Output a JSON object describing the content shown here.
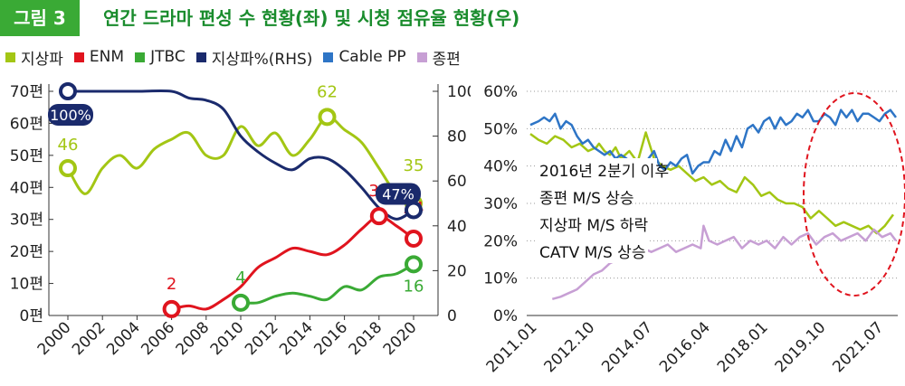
{
  "header": {
    "badge": "그림 3",
    "title": "연간 드라마 편성 수 현황(좌) 및 시청 점유율 현황(우)"
  },
  "legend": [
    {
      "label": "지상파",
      "color": "#a3c614"
    },
    {
      "label": "ENM",
      "color": "#e0141e"
    },
    {
      "label": "JTBC",
      "color": "#3aaa35"
    },
    {
      "label": "지상파%(RHS)",
      "color": "#1a2a6c"
    },
    {
      "label": "Cable PP",
      "color": "#2e75c6"
    },
    {
      "label": "종편",
      "color": "#c79fd4"
    }
  ],
  "colors": {
    "terrestrial": "#a3c614",
    "enm": "#e0141e",
    "jtbc": "#3aaa35",
    "terrestrial_pct": "#1a2a6c",
    "cable": "#2e75c6",
    "jongpyeon": "#c79fd4",
    "ellipse": "#e0141e"
  },
  "chart_data": [
    {
      "type": "line",
      "x_ticks": [
        "2000",
        "2002",
        "2004",
        "2006",
        "2008",
        "2010",
        "2012",
        "2014",
        "2016",
        "2018",
        "2020"
      ],
      "y_ticks_left": [
        "70편",
        "60편",
        "50편",
        "40편",
        "30편",
        "20편",
        "10편",
        "0편"
      ],
      "y_ticks_right": [
        "100",
        "80",
        "60",
        "40",
        "20",
        "0"
      ],
      "ylim_left": [
        0,
        70
      ],
      "ylim_right": [
        0,
        100
      ],
      "series": [
        {
          "name": "지상파",
          "key": "terrestrial",
          "axis": "left",
          "x": [
            2000,
            2001,
            2002,
            2003,
            2004,
            2005,
            2006,
            2007,
            2008,
            2009,
            2010,
            2011,
            2012,
            2013,
            2014,
            2015,
            2016,
            2017,
            2018,
            2019,
            2020
          ],
          "y": [
            46,
            38,
            46,
            50,
            46,
            52,
            55,
            57,
            50,
            50,
            59,
            53,
            57,
            50,
            55,
            62,
            58,
            54,
            46,
            38,
            35
          ]
        },
        {
          "name": "ENM",
          "key": "enm",
          "axis": "left",
          "x": [
            2006,
            2007,
            2008,
            2009,
            2010,
            2011,
            2012,
            2013,
            2014,
            2015,
            2016,
            2017,
            2018,
            2019,
            2020
          ],
          "y": [
            2,
            3,
            2,
            5,
            9,
            15,
            18,
            21,
            20,
            19,
            22,
            27,
            31,
            28,
            24
          ]
        },
        {
          "name": "JTBC",
          "key": "jtbc",
          "axis": "left",
          "x": [
            2010,
            2011,
            2012,
            2013,
            2014,
            2015,
            2016,
            2017,
            2018,
            2019,
            2020
          ],
          "y": [
            4,
            4,
            6,
            7,
            6,
            5,
            9,
            8,
            12,
            13,
            16
          ]
        },
        {
          "name": "지상파%(RHS)",
          "key": "terrestrial_pct",
          "axis": "right",
          "x": [
            2000,
            2002,
            2004,
            2006,
            2007,
            2008,
            2009,
            2010,
            2011,
            2012,
            2013,
            2014,
            2015,
            2016,
            2017,
            2018,
            2019,
            2020
          ],
          "y": [
            100,
            100,
            100,
            100,
            97,
            96,
            92,
            80,
            73,
            68,
            65,
            70,
            70,
            65,
            57,
            48,
            43,
            47
          ]
        }
      ],
      "markers": [
        {
          "key": "terrestrial",
          "x": 2000,
          "y": 46,
          "axis": "left",
          "label": "46"
        },
        {
          "key": "terrestrial",
          "x": 2015,
          "y": 62,
          "axis": "left",
          "label": "62"
        },
        {
          "key": "terrestrial",
          "x": 2020,
          "y": 35,
          "axis": "left",
          "label": "35"
        },
        {
          "key": "enm",
          "x": 2006,
          "y": 2,
          "axis": "left",
          "label": "2"
        },
        {
          "key": "enm",
          "x": 2018,
          "y": 31,
          "axis": "left",
          "label": "31"
        },
        {
          "key": "enm",
          "x": 2020,
          "y": 24,
          "axis": "left",
          "label": "24"
        },
        {
          "key": "jtbc",
          "x": 2010,
          "y": 4,
          "axis": "left",
          "label": "4"
        },
        {
          "key": "jtbc",
          "x": 2020,
          "y": 16,
          "axis": "left",
          "label": "16"
        },
        {
          "key": "terrestrial_pct",
          "x": 2000,
          "y": 100,
          "axis": "right",
          "label": "100%"
        },
        {
          "key": "terrestrial_pct",
          "x": 2020,
          "y": 47,
          "axis": "right",
          "label": "47%"
        }
      ]
    },
    {
      "type": "line",
      "x_ticks": [
        "2011.01",
        "2012.10",
        "2014.07",
        "2016.04",
        "2018.01",
        "2019.10",
        "2021.07"
      ],
      "x_tick_values": [
        0,
        21,
        42,
        63,
        84,
        105,
        126
      ],
      "y_ticks": [
        "60%",
        "50%",
        "40%",
        "30%",
        "20%",
        "10%",
        "0%"
      ],
      "ylim": [
        0,
        60
      ],
      "annotations": [
        "2016년 2분기 이후",
        "종편 M/S 상승",
        "지상파 M/S 하락",
        "CATV M/S 상승"
      ],
      "series": [
        {
          "name": "지상파",
          "key": "terrestrial",
          "x": [
            0,
            3,
            6,
            9,
            12,
            15,
            18,
            21,
            24,
            25,
            27,
            29,
            31,
            33,
            36,
            39,
            42,
            45,
            48,
            51,
            54,
            57,
            60,
            63,
            66,
            69,
            72,
            75,
            78,
            81,
            84,
            87,
            90,
            93,
            96,
            99,
            102,
            105,
            108,
            111,
            114,
            117,
            120,
            123,
            126,
            129,
            132
          ],
          "y": [
            48.6,
            47,
            46,
            48,
            47,
            45,
            46,
            44,
            45,
            46,
            44,
            43,
            45,
            42,
            44,
            41,
            49,
            42,
            40,
            39,
            40,
            38,
            36,
            37,
            35,
            36,
            34,
            33,
            37,
            35,
            32,
            33,
            31,
            30,
            30,
            29,
            26,
            28,
            26,
            24,
            25,
            24,
            23,
            24,
            22,
            24,
            27
          ]
        },
        {
          "name": "Cable PP",
          "key": "cable",
          "x": [
            0,
            3,
            5,
            7,
            9,
            11,
            13,
            15,
            17,
            19,
            21,
            23,
            25,
            27,
            29,
            31,
            33,
            35,
            37,
            39,
            41,
            43,
            45,
            47,
            49,
            51,
            53,
            55,
            57,
            59,
            61,
            63,
            65,
            67,
            69,
            71,
            73,
            75,
            77,
            79,
            81,
            83,
            85,
            87,
            89,
            91,
            93,
            95,
            97,
            99,
            101,
            103,
            105,
            107,
            109,
            111,
            113,
            115,
            117,
            119,
            121,
            123,
            125,
            127,
            129,
            131,
            133
          ],
          "y": [
            51,
            52,
            53,
            52,
            54,
            50,
            52,
            51,
            48,
            46,
            47,
            45,
            44,
            43,
            44,
            42,
            43,
            42,
            40,
            39,
            38,
            42,
            44,
            40,
            39,
            41,
            40,
            42,
            43,
            38,
            40,
            41,
            41,
            44,
            43,
            47,
            44,
            48,
            45,
            50,
            51,
            49,
            52,
            53,
            50,
            53,
            51,
            52,
            54,
            53,
            55,
            52,
            52,
            54,
            53,
            51,
            55,
            53,
            55,
            52,
            54,
            54,
            53,
            52,
            54,
            55,
            53
          ]
        },
        {
          "name": "종편",
          "key": "jongpyeon",
          "x": [
            8,
            11,
            14,
            17,
            20,
            23,
            26,
            29,
            32,
            35,
            38,
            41,
            44,
            47,
            50,
            53,
            56,
            59,
            62,
            63,
            65,
            68,
            71,
            74,
            77,
            80,
            83,
            86,
            89,
            92,
            95,
            98,
            101,
            104,
            107,
            110,
            113,
            116,
            119,
            122,
            125,
            128,
            131,
            133
          ],
          "y": [
            4.4,
            5,
            6,
            7,
            9,
            11,
            12,
            14,
            15,
            16,
            17,
            18,
            17,
            18,
            19,
            17,
            18,
            19,
            18,
            24,
            20,
            19,
            20,
            21,
            18,
            20,
            19,
            20,
            18,
            21,
            19,
            21,
            22,
            19,
            21,
            22,
            20,
            21,
            22,
            20,
            23,
            21,
            22,
            20
          ]
        }
      ],
      "highlight": "ellipse"
    }
  ]
}
